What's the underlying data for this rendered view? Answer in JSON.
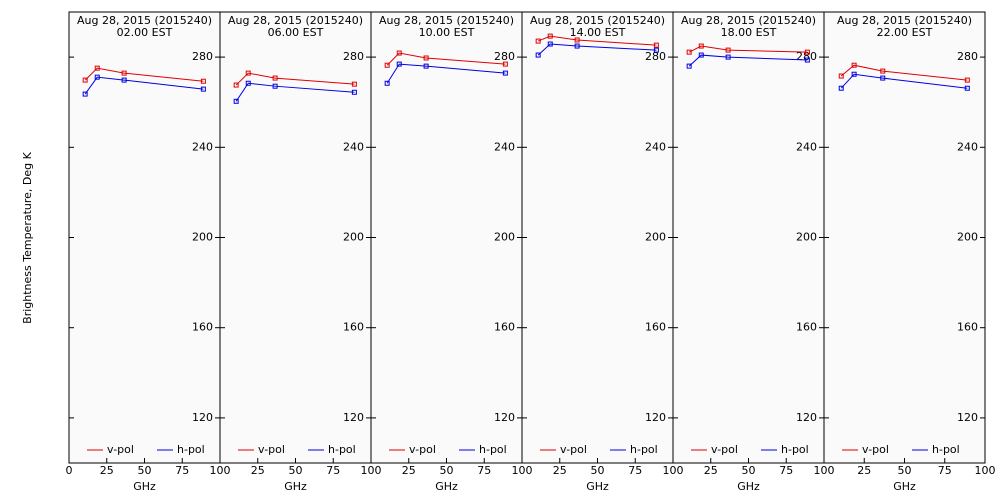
{
  "chart_data": [
    {
      "type": "line",
      "title": "Aug 28, 2015 (2015240)",
      "subtitle": "02.00 EST",
      "xlabel": "GHz",
      "ylabel": "Brightness Temperature, Deg K",
      "x": [
        10.7,
        18.7,
        36.5,
        89
      ],
      "xlim": [
        0,
        100
      ],
      "xticks": [
        0,
        25,
        50,
        75,
        100
      ],
      "ylim": [
        100,
        300
      ],
      "yticks": [
        120,
        160,
        200,
        240,
        280
      ],
      "legend": "bottom",
      "series": [
        {
          "name": "v-pol",
          "color": "#e00000",
          "values": [
            269.8,
            275.1,
            272.9,
            269.3
          ]
        },
        {
          "name": "h-pol",
          "color": "#0000e0",
          "values": [
            263.6,
            271.1,
            269.8,
            265.8
          ]
        }
      ]
    },
    {
      "type": "line",
      "title": "Aug 28, 2015 (2015240)",
      "subtitle": "06.00 EST",
      "xlabel": "GHz",
      "x": [
        10.7,
        18.7,
        36.5,
        89
      ],
      "xlim": [
        0,
        100
      ],
      "xticks": [
        25,
        50,
        75,
        100
      ],
      "ylim": [
        100,
        300
      ],
      "yticks": [
        120,
        160,
        200,
        240,
        280
      ],
      "legend": "bottom",
      "series": [
        {
          "name": "v-pol",
          "color": "#e00000",
          "values": [
            267.6,
            272.9,
            270.7,
            268.0
          ]
        },
        {
          "name": "h-pol",
          "color": "#0000e0",
          "values": [
            260.4,
            268.4,
            267.1,
            264.4
          ]
        }
      ]
    },
    {
      "type": "line",
      "title": "Aug 28, 2015 (2015240)",
      "subtitle": "10.00 EST",
      "xlabel": "GHz",
      "x": [
        10.7,
        18.7,
        36.5,
        89
      ],
      "xlim": [
        0,
        100
      ],
      "xticks": [
        25,
        50,
        75,
        100
      ],
      "ylim": [
        100,
        300
      ],
      "yticks": [
        120,
        160,
        200,
        240,
        280
      ],
      "legend": "bottom",
      "series": [
        {
          "name": "v-pol",
          "color": "#e00000",
          "values": [
            276.4,
            281.8,
            279.6,
            276.9
          ]
        },
        {
          "name": "h-pol",
          "color": "#0000e0",
          "values": [
            268.4,
            276.9,
            276.0,
            272.9
          ]
        }
      ]
    },
    {
      "type": "line",
      "title": "Aug 28, 2015 (2015240)",
      "subtitle": "14.00 EST",
      "xlabel": "GHz",
      "x": [
        10.7,
        18.7,
        36.5,
        89
      ],
      "xlim": [
        0,
        100
      ],
      "xticks": [
        25,
        50,
        75,
        100
      ],
      "ylim": [
        100,
        300
      ],
      "yticks": [
        120,
        160,
        200,
        240,
        280
      ],
      "legend": "bottom",
      "series": [
        {
          "name": "v-pol",
          "color": "#e00000",
          "values": [
            287.1,
            289.3,
            287.6,
            285.3
          ]
        },
        {
          "name": "h-pol",
          "color": "#0000e0",
          "values": [
            280.9,
            285.8,
            284.9,
            283.1
          ]
        }
      ]
    },
    {
      "type": "line",
      "title": "Aug 28, 2015 (2015240)",
      "subtitle": "18.00 EST",
      "xlabel": "GHz",
      "x": [
        10.7,
        18.7,
        36.5,
        89
      ],
      "xlim": [
        0,
        100
      ],
      "xticks": [
        25,
        50,
        75,
        100
      ],
      "ylim": [
        100,
        300
      ],
      "yticks": [
        120,
        160,
        200,
        240,
        280
      ],
      "legend": "bottom",
      "series": [
        {
          "name": "v-pol",
          "color": "#e00000",
          "values": [
            282.2,
            284.9,
            283.1,
            282.2
          ]
        },
        {
          "name": "h-pol",
          "color": "#0000e0",
          "values": [
            276.0,
            280.9,
            280.0,
            278.7
          ]
        }
      ]
    },
    {
      "type": "line",
      "title": "Aug 28, 2015 (2015240)",
      "subtitle": "22.00 EST",
      "xlabel": "GHz",
      "x": [
        10.7,
        18.7,
        36.5,
        89
      ],
      "xlim": [
        0,
        100
      ],
      "xticks": [
        25,
        50,
        75,
        100
      ],
      "ylim": [
        100,
        300
      ],
      "yticks": [
        120,
        160,
        200,
        240,
        280
      ],
      "legend": "bottom",
      "series": [
        {
          "name": "v-pol",
          "color": "#e00000",
          "values": [
            271.6,
            276.4,
            273.8,
            269.8
          ]
        },
        {
          "name": "h-pol",
          "color": "#0000e0",
          "values": [
            266.2,
            272.4,
            270.7,
            266.2
          ]
        }
      ]
    }
  ]
}
